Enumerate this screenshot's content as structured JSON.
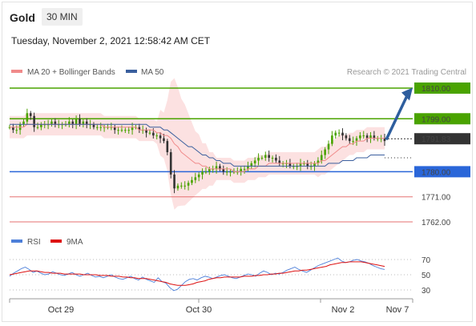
{
  "header": {
    "instrument": "Gold",
    "timeframe": "30 MIN",
    "timestamp": "Tuesday, November 2, 2021 12:58:42 AM CET"
  },
  "chart_data": {
    "type": "candlestick",
    "legend": [
      {
        "label": "MA 20 + Bollinger Bands",
        "color": "#f08a8a"
      },
      {
        "label": "MA 50",
        "color": "#3a5f9e"
      }
    ],
    "credit": "Research © 2021 Trading Central",
    "current_price": {
      "value": 1791.83,
      "label": "1791.83",
      "color": "#333333"
    },
    "levels": [
      {
        "value": 1810.0,
        "label": "1810.00",
        "role": "target",
        "color": "#4aa300"
      },
      {
        "value": 1799.0,
        "label": "1799.00",
        "role": "resistance",
        "color": "#4aa300"
      },
      {
        "value": 1780.0,
        "label": "1780.00",
        "role": "pivot",
        "color": "#2a66d9"
      },
      {
        "value": 1771.0,
        "label": "1771.00",
        "role": "support",
        "color": "#e05050"
      },
      {
        "value": 1762.0,
        "label": "1762.00",
        "role": "support",
        "color": "#e05050"
      }
    ],
    "ohlc_close_path": [
      1796,
      1795,
      1795,
      1797,
      1798,
      1801,
      1800,
      1796,
      1796,
      1797,
      1797,
      1797,
      1798,
      1797,
      1797,
      1797,
      1797,
      1798,
      1797,
      1799,
      1797,
      1798,
      1797,
      1797,
      1796,
      1796,
      1796,
      1796,
      1796,
      1796,
      1795,
      1795,
      1795,
      1795,
      1795,
      1796,
      1796,
      1795,
      1795,
      1794,
      1794,
      1793,
      1793,
      1792,
      1791,
      1787,
      1779,
      1774,
      1775,
      1775,
      1775,
      1776,
      1777,
      1778,
      1779,
      1780,
      1780,
      1781,
      1781,
      1782,
      1781,
      1780,
      1780,
      1780,
      1780,
      1780,
      1781,
      1781,
      1782,
      1783,
      1784,
      1785,
      1785,
      1786,
      1785,
      1785,
      1784,
      1783,
      1783,
      1783,
      1782,
      1782,
      1782,
      1783,
      1783,
      1782,
      1782,
      1783,
      1784,
      1786,
      1788,
      1790,
      1793,
      1794,
      1794,
      1793,
      1792,
      1791,
      1791,
      1792,
      1793,
      1793,
      1792,
      1793,
      1792,
      1792,
      1792,
      1791
    ],
    "ma20": [
      1796,
      1796,
      1796,
      1796,
      1796,
      1797,
      1797,
      1797,
      1797,
      1797,
      1797,
      1797,
      1797,
      1797,
      1797,
      1797,
      1797,
      1797,
      1797,
      1797,
      1797,
      1797,
      1797,
      1797,
      1797,
      1797,
      1797,
      1796,
      1796,
      1796,
      1796,
      1796,
      1796,
      1796,
      1796,
      1796,
      1796,
      1795,
      1795,
      1795,
      1795,
      1795,
      1794,
      1794,
      1793,
      1793,
      1792,
      1790,
      1789,
      1787,
      1786,
      1785,
      1784,
      1783,
      1783,
      1782,
      1782,
      1781,
      1781,
      1781,
      1781,
      1781,
      1781,
      1781,
      1780,
      1780,
      1780,
      1780,
      1781,
      1781,
      1781,
      1782,
      1782,
      1782,
      1783,
      1783,
      1783,
      1783,
      1783,
      1783,
      1783,
      1783,
      1783,
      1783,
      1783,
      1783,
      1783,
      1783,
      1783,
      1784,
      1784,
      1785,
      1786,
      1787,
      1788,
      1789,
      1789,
      1790,
      1790,
      1791,
      1791,
      1791,
      1792,
      1792,
      1792,
      1792,
      1792,
      1792
    ],
    "ma50": [
      1797,
      1797,
      1797,
      1797,
      1797,
      1797,
      1797,
      1797,
      1797,
      1797,
      1797,
      1797,
      1797,
      1797,
      1797,
      1797,
      1797,
      1797,
      1797,
      1797,
      1797,
      1797,
      1797,
      1797,
      1797,
      1797,
      1797,
      1797,
      1797,
      1797,
      1797,
      1797,
      1797,
      1797,
      1797,
      1797,
      1797,
      1797,
      1797,
      1797,
      1796,
      1796,
      1796,
      1796,
      1795,
      1795,
      1794,
      1793,
      1792,
      1791,
      1790,
      1789,
      1789,
      1788,
      1787,
      1786,
      1786,
      1785,
      1785,
      1784,
      1784,
      1783,
      1783,
      1783,
      1782,
      1782,
      1782,
      1782,
      1782,
      1782,
      1782,
      1782,
      1782,
      1782,
      1782,
      1782,
      1782,
      1782,
      1782,
      1782,
      1782,
      1782,
      1782,
      1782,
      1782,
      1782,
      1782,
      1782,
      1782,
      1782,
      1782,
      1783,
      1783,
      1783,
      1783,
      1784,
      1784,
      1784,
      1784,
      1785,
      1785,
      1785,
      1785,
      1786,
      1786,
      1786,
      1786,
      1786
    ],
    "rsi_panel": {
      "legend": [
        {
          "label": "RSI",
          "color": "#4d7fd9"
        },
        {
          "label": "9MA",
          "color": "#d11"
        }
      ],
      "yticks": [
        "70",
        "50",
        "30"
      ],
      "rsi": [
        48,
        52,
        55,
        58,
        60,
        57,
        53,
        55,
        52,
        50,
        51,
        54,
        52,
        50,
        49,
        51,
        53,
        50,
        48,
        50,
        52,
        49,
        47,
        48,
        46,
        48,
        50,
        47,
        45,
        44,
        46,
        48,
        45,
        43,
        47,
        44,
        42,
        40,
        46,
        41,
        39,
        33,
        29,
        31,
        36,
        41,
        44,
        45,
        43,
        46,
        48,
        47,
        45,
        47,
        49,
        50,
        48,
        46,
        45,
        47,
        49,
        51,
        50,
        48,
        52,
        55,
        53,
        50,
        52,
        51,
        53,
        56,
        58,
        60,
        57,
        55,
        53,
        56,
        59,
        62,
        64,
        66,
        68,
        70,
        72,
        68,
        66,
        67,
        69,
        70,
        68,
        67,
        65,
        62,
        60,
        58,
        57
      ],
      "ma9": [
        50,
        51,
        52,
        53,
        54,
        55,
        55,
        55,
        54,
        53,
        53,
        52,
        52,
        52,
        51,
        51,
        51,
        51,
        51,
        50,
        50,
        50,
        50,
        49,
        49,
        49,
        48,
        48,
        48,
        47,
        47,
        46,
        46,
        45,
        45,
        45,
        44,
        43,
        42,
        41,
        40,
        38,
        37,
        36,
        36,
        36,
        37,
        38,
        40,
        41,
        42,
        44,
        45,
        46,
        46,
        47,
        47,
        47,
        47,
        47,
        48,
        48,
        48,
        49,
        49,
        50,
        50,
        51,
        51,
        52,
        52,
        53,
        54,
        55,
        55,
        56,
        56,
        57,
        58,
        59,
        60,
        61,
        63,
        64,
        65,
        66,
        66,
        67,
        67,
        67,
        67,
        66,
        65,
        64,
        63,
        62,
        61
      ]
    },
    "x_ticks": [
      "Oct 29",
      "Oct 30",
      "Nov 2",
      "Nov 7"
    ],
    "ylim": [
      1757,
      1817
    ]
  }
}
